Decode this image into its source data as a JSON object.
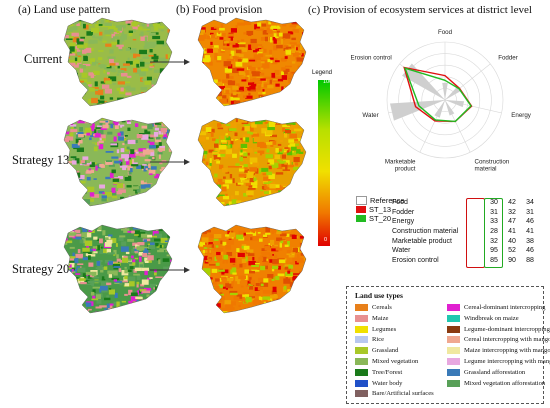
{
  "headers": {
    "a": "(a) Land use pattern",
    "b": "(b) Food provision",
    "c": "(c) Provision of ecosystem services at district level"
  },
  "rows": [
    "Current",
    "Strategy 13",
    "Strategy 20"
  ],
  "gradient_legend": {
    "title": "Legend",
    "max": "100",
    "min": "0"
  },
  "radar": {
    "axes": [
      "Food",
      "Fodder",
      "Energy",
      "Construction material",
      "Marketable product",
      "Water",
      "Erosion control"
    ],
    "axis_labels": [
      [
        "Food"
      ],
      [
        "Fodder"
      ],
      [
        "Energy"
      ],
      [
        "Construction",
        "material"
      ],
      [
        "Marketable",
        "product"
      ],
      [
        "Water"
      ],
      [
        "Erosion control"
      ]
    ],
    "max": 100
  },
  "series_legend": [
    {
      "name": "Reference",
      "color": "#d8d8d8"
    },
    {
      "name": "ST_13",
      "color": "#e01010"
    },
    {
      "name": "ST_20",
      "color": "#22bb22"
    }
  ],
  "table": {
    "rows": [
      "Food",
      "Fodder",
      "Energy",
      "Construction material",
      "Marketable product",
      "Water",
      "Erosion control"
    ],
    "reference": [
      "30",
      "31",
      "33",
      "28",
      "32",
      "95",
      "85"
    ],
    "st13": [
      "42",
      "32",
      "47",
      "41",
      "40",
      "52",
      "90"
    ],
    "st20": [
      "34",
      "31",
      "46",
      "41",
      "38",
      "46",
      "88"
    ]
  },
  "chart_data": {
    "type": "radar",
    "categories": [
      "Food",
      "Fodder",
      "Energy",
      "Construction material",
      "Marketable product",
      "Water",
      "Erosion control"
    ],
    "series": [
      {
        "name": "Reference",
        "values": [
          30,
          31,
          33,
          28,
          32,
          95,
          85
        ]
      },
      {
        "name": "ST_13",
        "values": [
          42,
          32,
          47,
          41,
          40,
          52,
          90
        ]
      },
      {
        "name": "ST_20",
        "values": [
          34,
          31,
          46,
          41,
          38,
          46,
          88
        ]
      }
    ],
    "ylim": [
      0,
      100
    ],
    "grid": true
  },
  "land_use": {
    "title": "Land use types",
    "left": [
      {
        "name": "Cereals",
        "color": "#e8801a"
      },
      {
        "name": "Maize",
        "color": "#e89090"
      },
      {
        "name": "Legumes",
        "color": "#f0e000"
      },
      {
        "name": "Rice",
        "color": "#b8c8f0"
      },
      {
        "name": "Grassland",
        "color": "#a8c828"
      },
      {
        "name": "Mixed vegetation",
        "color": "#8ab858"
      },
      {
        "name": "Tree/Forest",
        "color": "#1a7a1a"
      },
      {
        "name": "Water body",
        "color": "#2050c8"
      },
      {
        "name": "Bare/Artificial surfaces",
        "color": "#806060"
      }
    ],
    "right": [
      {
        "name": "Cereal-dominant intercropping",
        "color": "#e020d0"
      },
      {
        "name": "Windbreak on maize",
        "color": "#20c8b0"
      },
      {
        "name": "Legume-dominant intercropping",
        "color": "#8a3a10"
      },
      {
        "name": "Cereal intercropping with mango",
        "color": "#f0a890"
      },
      {
        "name": "Maize intercropping with mango",
        "color": "#f0e8a0"
      },
      {
        "name": "Legume intercropping with mango",
        "color": "#e8a8e0"
      },
      {
        "name": "Grassland afforestation",
        "color": "#3a7ab8"
      },
      {
        "name": "Mixed vegetation afforestation",
        "color": "#58a058"
      }
    ]
  }
}
